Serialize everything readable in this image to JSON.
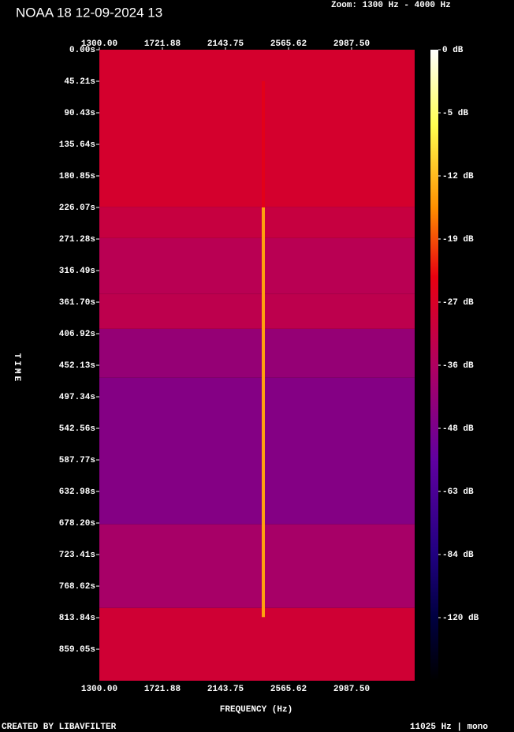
{
  "chart_data": {
    "type": "spectrogram",
    "title": "NOAA 18 12-09-2024 13",
    "zoom_label": "Zoom: 1300 Hz - 4000 Hz",
    "x_label": "FREQUENCY (Hz)",
    "y_label": "TIME",
    "footer_left": "CREATED BY LIBAVFILTER",
    "footer_right": "11025 Hz | mono",
    "xlim": [
      1300,
      3409.375
    ],
    "xticks": [
      {
        "value": 1300,
        "label": "1300.00"
      },
      {
        "value": 1721.88,
        "label": "1721.88"
      },
      {
        "value": 2143.75,
        "label": "2143.75"
      },
      {
        "value": 2565.62,
        "label": "2565.62"
      },
      {
        "value": 2987.5,
        "label": "2987.50"
      }
    ],
    "ylim": [
      0,
      904.2
    ],
    "yticks": [
      {
        "value": 0,
        "label": "0.00s"
      },
      {
        "value": 45.21,
        "label": "45.21s"
      },
      {
        "value": 90.43,
        "label": "90.43s"
      },
      {
        "value": 135.64,
        "label": "135.64s"
      },
      {
        "value": 180.85,
        "label": "180.85s"
      },
      {
        "value": 226.07,
        "label": "226.07s"
      },
      {
        "value": 271.28,
        "label": "271.28s"
      },
      {
        "value": 316.49,
        "label": "316.49s"
      },
      {
        "value": 361.7,
        "label": "361.70s"
      },
      {
        "value": 406.92,
        "label": "406.92s"
      },
      {
        "value": 452.13,
        "label": "452.13s"
      },
      {
        "value": 497.34,
        "label": "497.34s"
      },
      {
        "value": 542.56,
        "label": "542.56s"
      },
      {
        "value": 587.77,
        "label": "587.77s"
      },
      {
        "value": 632.98,
        "label": "632.98s"
      },
      {
        "value": 678.2,
        "label": "678.20s"
      },
      {
        "value": 723.41,
        "label": "723.41s"
      },
      {
        "value": 768.62,
        "label": "768.62s"
      },
      {
        "value": 813.84,
        "label": "813.84s"
      },
      {
        "value": 859.05,
        "label": "859.05s"
      }
    ],
    "colorbar_ticks": [
      {
        "value": 0,
        "label": "0 dB"
      },
      {
        "value": -5,
        "label": "-5 dB"
      },
      {
        "value": -12,
        "label": "-12 dB"
      },
      {
        "value": -19,
        "label": "-19 dB"
      },
      {
        "value": -27,
        "label": "-27 dB"
      },
      {
        "value": -36,
        "label": "-36 dB"
      },
      {
        "value": -48,
        "label": "-48 dB"
      },
      {
        "value": -63,
        "label": "-63 dB"
      },
      {
        "value": -84,
        "label": "-84 dB"
      },
      {
        "value": -120,
        "label": "-120 dB"
      }
    ],
    "bands": {
      "edges": [
        0,
        225,
        270,
        350,
        400,
        470,
        680,
        800,
        904.2
      ],
      "levels": [
        -28,
        -31,
        -34,
        -33,
        -42,
        -46,
        -38,
        -29
      ]
    },
    "signal": {
      "frequency": 2397,
      "t": [
        45,
        226,
        813
      ],
      "levels": [
        -25,
        -14
      ]
    }
  }
}
